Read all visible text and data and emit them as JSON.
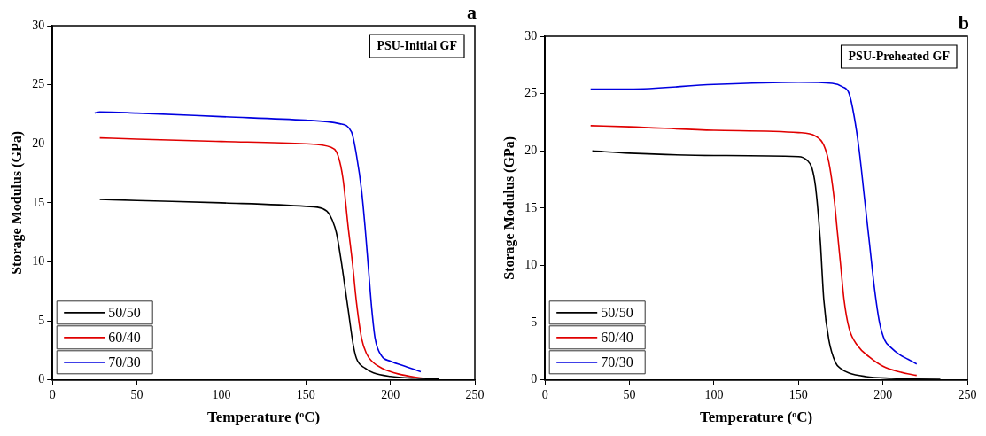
{
  "chart_data": [
    {
      "type": "line",
      "xlabel": "Temperature (ᵒC)",
      "ylabel": "Storage Modulus (GPa)",
      "xlim": [
        0,
        250
      ],
      "ylim": [
        0,
        30
      ],
      "xticks": [
        0,
        50,
        100,
        150,
        200,
        250
      ],
      "yticks": [
        0,
        5,
        10,
        15,
        20,
        25,
        30
      ],
      "grid": false,
      "legend": "bottom left",
      "marker": "none",
      "line_style": "solid",
      "annotations": [
        "PSU-Initial GF",
        "a"
      ],
      "series": [
        {
          "name": "50/50",
          "color": "#000000",
          "x": [
            28,
            50,
            100,
            150,
            160,
            164,
            168,
            171,
            173,
            175,
            178,
            180,
            185,
            190,
            200,
            215,
            229
          ],
          "values": [
            15.3,
            15.2,
            15.0,
            14.7,
            14.5,
            14.0,
            12.5,
            10.0,
            8.0,
            6.0,
            3.0,
            1.8,
            1.0,
            0.6,
            0.3,
            0.15,
            0.1
          ]
        },
        {
          "name": "60/40",
          "color": "#e00000",
          "x": [
            28,
            50,
            100,
            150,
            165,
            169,
            172,
            175,
            177.5,
            180,
            183,
            186,
            189,
            195,
            205,
            219
          ],
          "values": [
            20.5,
            20.4,
            20.2,
            20.0,
            19.7,
            19.0,
            17.0,
            13.0,
            10.0,
            6.5,
            3.5,
            2.2,
            1.6,
            1.0,
            0.5,
            0.15
          ]
        },
        {
          "name": "70/30",
          "color": "#0000e0",
          "x": [
            25,
            28,
            50,
            100,
            150,
            170,
            177,
            180,
            183,
            185,
            187,
            189,
            191,
            195,
            200,
            210,
            218
          ],
          "values": [
            22.6,
            22.7,
            22.6,
            22.3,
            22.0,
            21.7,
            21.0,
            19.0,
            16.0,
            13.0,
            9.5,
            6.0,
            3.5,
            2.0,
            1.6,
            1.1,
            0.7
          ]
        }
      ]
    },
    {
      "type": "line",
      "xlabel": "Temperature (ᵒC)",
      "ylabel": "Storage Modulus (GPa)",
      "xlim": [
        0,
        250
      ],
      "ylim": [
        0,
        30
      ],
      "xticks": [
        0,
        50,
        100,
        150,
        200,
        250
      ],
      "yticks": [
        0,
        5,
        10,
        15,
        20,
        25,
        30
      ],
      "grid": false,
      "legend": "bottom left",
      "marker": "none",
      "line_style": "solid",
      "annotations": [
        "PSU-Preheated GF",
        "b"
      ],
      "series": [
        {
          "name": "50/50",
          "color": "#000000",
          "x": [
            28,
            50,
            100,
            150,
            155,
            158,
            160,
            162,
            163,
            165,
            168,
            172,
            175,
            180,
            190,
            205,
            220,
            234
          ],
          "values": [
            20.0,
            19.8,
            19.6,
            19.5,
            19.2,
            18.5,
            17.0,
            14.0,
            12.0,
            7.0,
            3.5,
            1.5,
            1.0,
            0.6,
            0.3,
            0.15,
            0.08,
            0.05
          ]
        },
        {
          "name": "60/40",
          "color": "#e00000",
          "x": [
            27,
            50,
            100,
            150,
            160,
            165,
            168,
            171,
            173,
            175,
            177,
            180,
            185,
            192,
            200,
            210,
            220
          ],
          "values": [
            22.2,
            22.1,
            21.8,
            21.6,
            21.3,
            20.5,
            19.0,
            16.0,
            13.0,
            10.0,
            7.0,
            4.5,
            3.0,
            2.0,
            1.2,
            0.7,
            0.4
          ]
        },
        {
          "name": "70/30",
          "color": "#0000e0",
          "x": [
            27,
            50,
            100,
            150,
            170,
            176,
            180,
            183,
            186,
            189,
            192,
            195,
            198,
            201,
            205,
            210,
            215,
            220
          ],
          "values": [
            25.4,
            25.4,
            25.8,
            26.0,
            25.9,
            25.6,
            25.0,
            23.0,
            20.0,
            16.0,
            12.0,
            8.0,
            5.0,
            3.5,
            2.8,
            2.2,
            1.8,
            1.4
          ]
        }
      ]
    }
  ]
}
